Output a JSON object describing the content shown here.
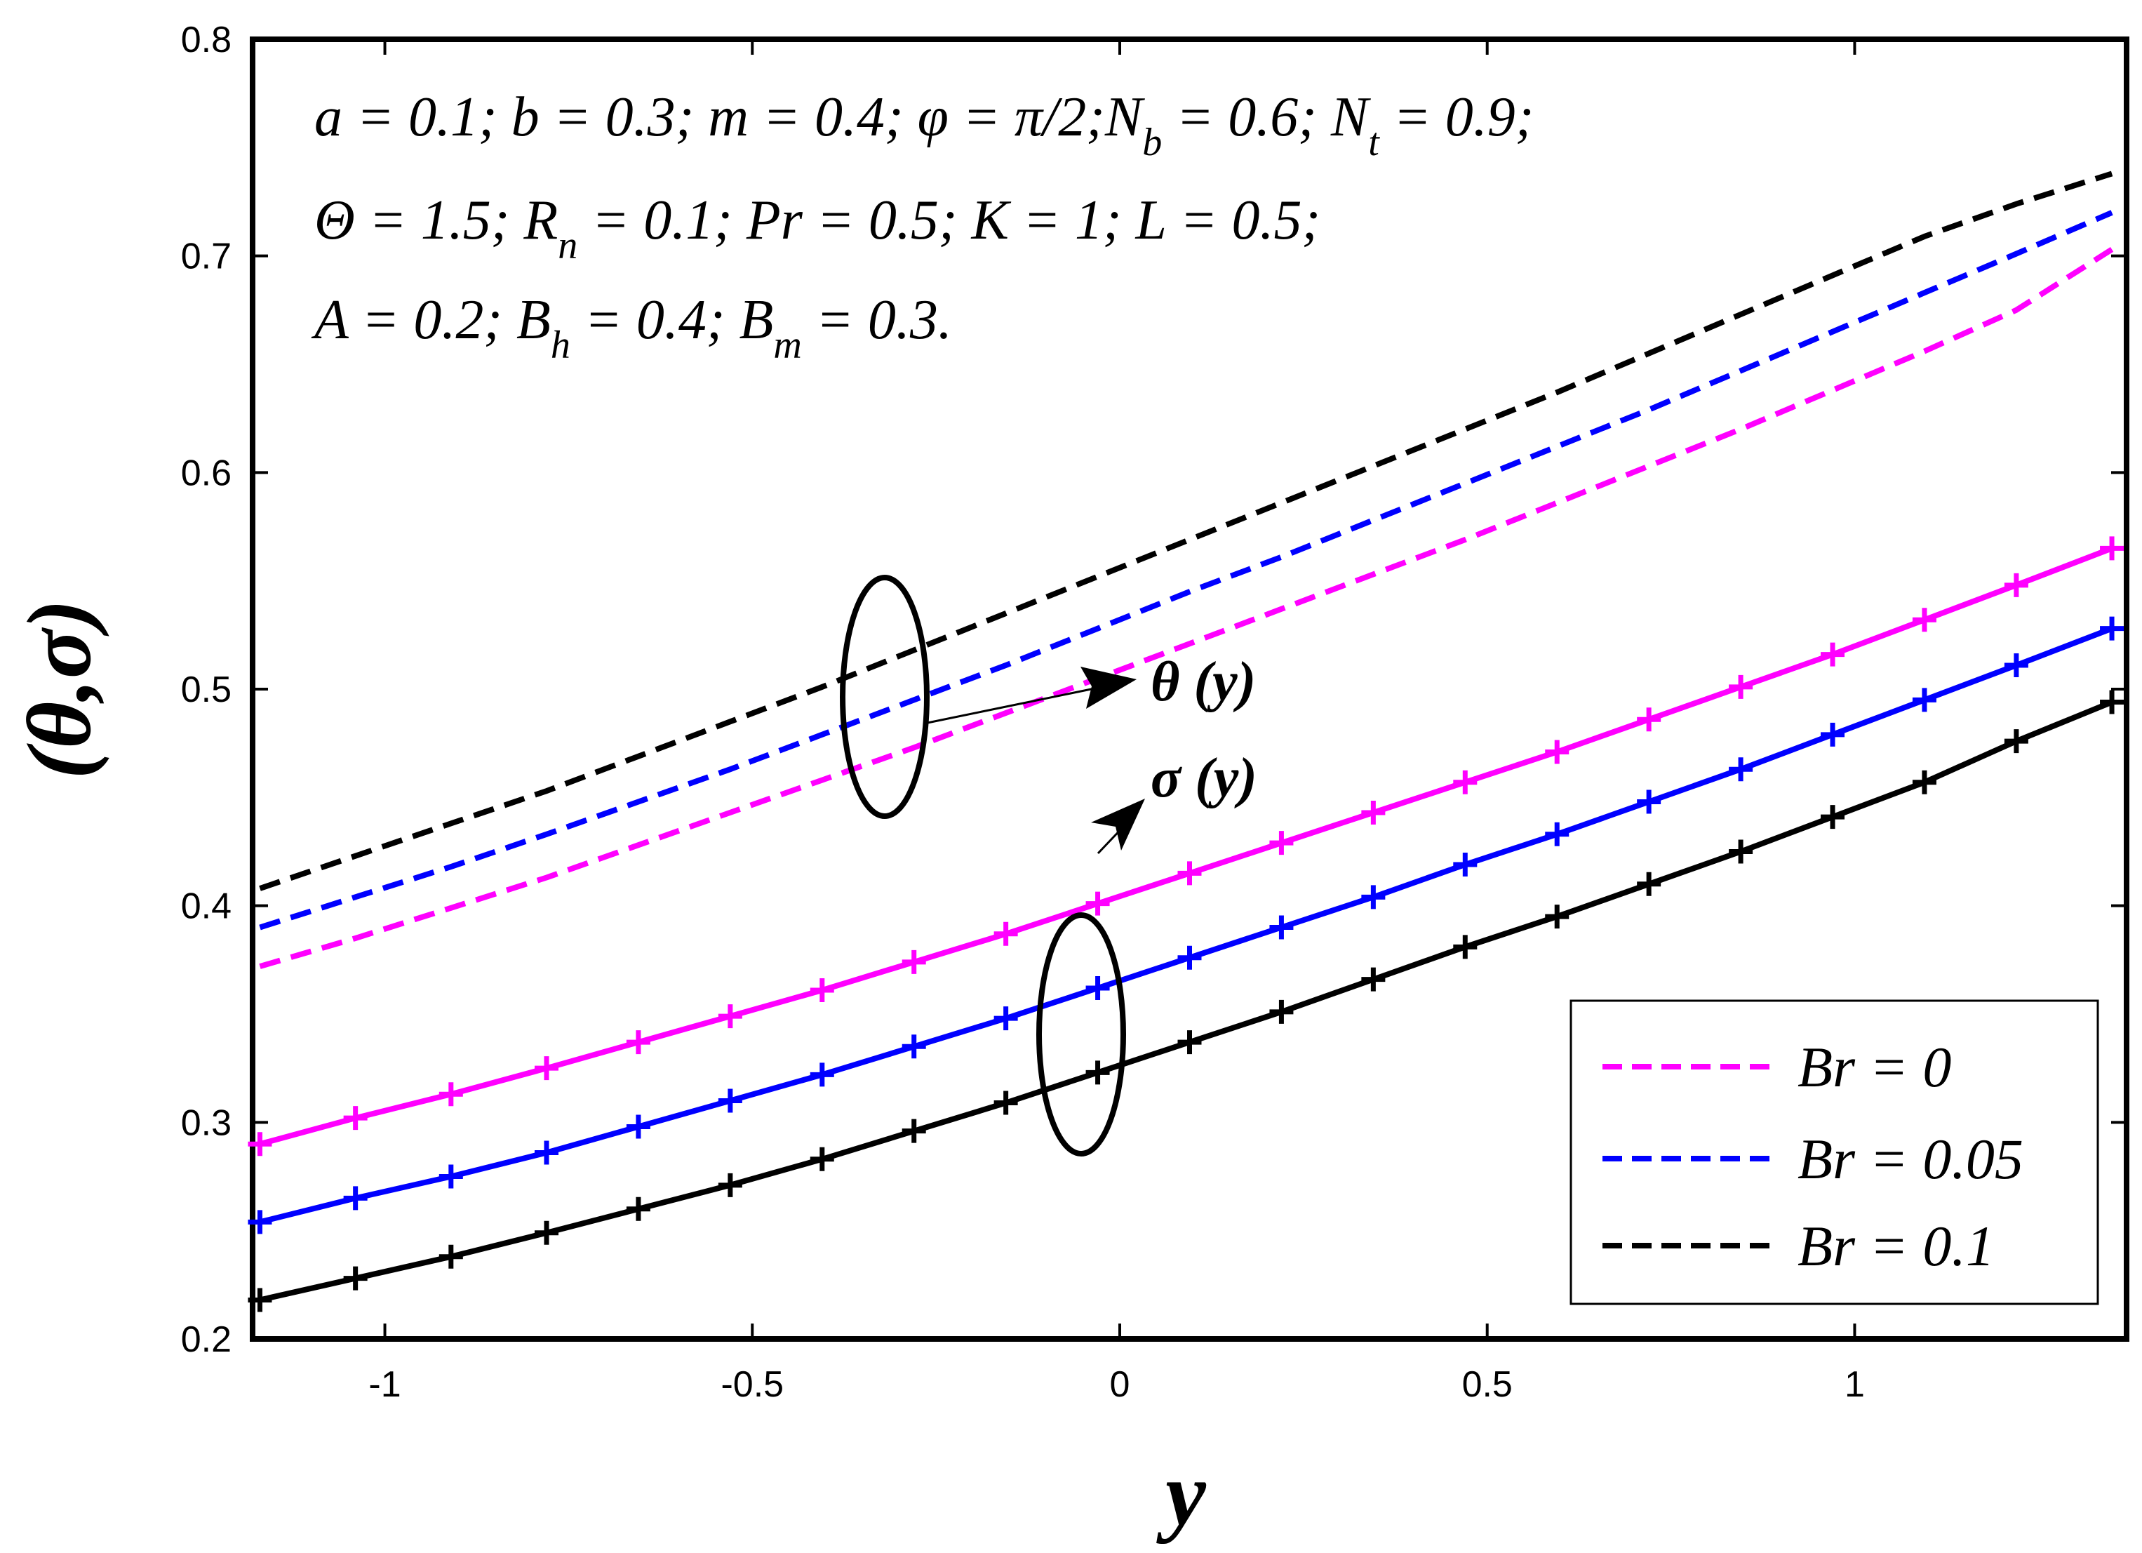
{
  "chart_data": {
    "type": "line",
    "title": "",
    "xlabel": "y",
    "ylabel": "(θ,σ)",
    "xlim": [
      -1.18,
      1.37
    ],
    "ylim": [
      0.2,
      0.8
    ],
    "grid": false,
    "xticks": [
      -1,
      -0.5,
      0,
      0.5,
      1
    ],
    "xtick_labels": [
      "-1",
      "-0.5",
      "0",
      "0.5",
      "1"
    ],
    "yticks": [
      0.2,
      0.3,
      0.4,
      0.5,
      0.6,
      0.7,
      0.8
    ],
    "ytick_labels": [
      "0.2",
      "0.3",
      "0.4",
      "0.5",
      "0.6",
      "0.7",
      "0.8"
    ],
    "x": [
      -1.17,
      -1.04,
      -0.91,
      -0.78,
      -0.655,
      -0.53,
      -0.405,
      -0.28,
      -0.155,
      -0.03,
      0.095,
      0.22,
      0.345,
      0.47,
      0.595,
      0.72,
      0.845,
      0.97,
      1.095,
      1.22,
      1.35
    ],
    "series": [
      {
        "name": "Br = 0",
        "quantity": "θ(y)",
        "style": "dashed",
        "color": "#ff00ff",
        "values": [
          0.372,
          0.385,
          0.399,
          0.413,
          0.428,
          0.443,
          0.458,
          0.473,
          0.489,
          0.505,
          0.521,
          0.537,
          0.553,
          0.569,
          0.586,
          0.603,
          0.62,
          0.638,
          0.656,
          0.675,
          0.703
        ]
      },
      {
        "name": "Br = 0.05",
        "quantity": "θ(y)",
        "style": "dashed",
        "color": "#0000ff",
        "values": [
          0.39,
          0.404,
          0.418,
          0.433,
          0.448,
          0.463,
          0.479,
          0.495,
          0.511,
          0.528,
          0.545,
          0.561,
          0.578,
          0.595,
          0.612,
          0.629,
          0.647,
          0.665,
          0.683,
          0.701,
          0.72
        ]
      },
      {
        "name": "Br = 0.1",
        "quantity": "θ(y)",
        "style": "dashed",
        "color": "#000000",
        "values": [
          0.408,
          0.423,
          0.438,
          0.453,
          0.469,
          0.485,
          0.501,
          0.518,
          0.535,
          0.552,
          0.569,
          0.586,
          0.603,
          0.62,
          0.637,
          0.655,
          0.673,
          0.691,
          0.709,
          0.724,
          0.738
        ]
      },
      {
        "name": "Br = 0",
        "quantity": "σ(y)",
        "style": "solid-plus",
        "color": "#ff00ff",
        "values": [
          0.29,
          0.302,
          0.313,
          0.325,
          0.337,
          0.349,
          0.361,
          0.374,
          0.387,
          0.401,
          0.415,
          0.429,
          0.443,
          0.457,
          0.471,
          0.486,
          0.501,
          0.516,
          0.532,
          0.548,
          0.565
        ]
      },
      {
        "name": "Br = 0.05",
        "quantity": "σ(y)",
        "style": "solid-plus",
        "color": "#0000ff",
        "values": [
          0.254,
          0.265,
          0.275,
          0.286,
          0.298,
          0.31,
          0.322,
          0.335,
          0.348,
          0.362,
          0.376,
          0.39,
          0.404,
          0.419,
          0.433,
          0.448,
          0.463,
          0.479,
          0.495,
          0.511,
          0.528
        ]
      },
      {
        "name": "Br = 0.1",
        "quantity": "σ(y)",
        "style": "solid-plus",
        "color": "#000000",
        "values": [
          0.218,
          0.228,
          0.238,
          0.249,
          0.26,
          0.271,
          0.283,
          0.296,
          0.309,
          0.323,
          0.337,
          0.351,
          0.366,
          0.381,
          0.395,
          0.41,
          0.425,
          0.441,
          0.457,
          0.476,
          0.494
        ]
      }
    ],
    "legend": {
      "placement": "bottom-right",
      "entries": [
        "Br = 0",
        "Br = 0.05",
        "Br = 0.1"
      ]
    },
    "parameters": {
      "line1": "a = 0.1; b = 0.3; m = 0.4; φ = π/2;N",
      "line1_nb_sub": "b",
      "line1_mid": " = 0.6; N",
      "line1_nt_sub": "t",
      "line1_end": " = 0.9;",
      "line2": "Θ = 1.5; R",
      "line2_sub": "n",
      "line2_end": " = 0.1; Pr = 0.5; K = 1; L = 0.5;",
      "line3": "A = 0.2; B",
      "line3_sub1": "h",
      "line3_mid": " = 0.4; B",
      "line3_sub2": "m",
      "line3_end": " = 0.3."
    },
    "annotations": {
      "theta_label": "θ (y)",
      "sigma_label": "σ (y)"
    }
  }
}
